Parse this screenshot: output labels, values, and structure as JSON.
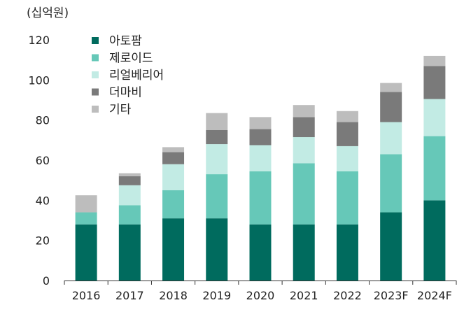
{
  "chart_data": {
    "type": "bar",
    "stacked": true,
    "unit_label": "(십억원)",
    "categories": [
      "2016",
      "2017",
      "2018",
      "2019",
      "2020",
      "2021",
      "2022",
      "2023F",
      "2024F"
    ],
    "series": [
      {
        "name": "아토팜",
        "color": "#006b5e",
        "values": [
          28,
          28,
          31,
          31,
          28,
          28,
          28,
          34,
          40
        ]
      },
      {
        "name": "제로이드",
        "color": "#66c8b8",
        "values": [
          6,
          9.5,
          14,
          22,
          26.5,
          30.5,
          26.5,
          29,
          32
        ]
      },
      {
        "name": "리얼베리어",
        "color": "#c2ebe4",
        "values": [
          0,
          10,
          13,
          15,
          13,
          13,
          12.5,
          16,
          18.5
        ]
      },
      {
        "name": "더마비",
        "color": "#7a7a7a",
        "values": [
          0,
          4.5,
          6,
          7,
          8,
          10,
          12,
          15,
          16.5
        ]
      },
      {
        "name": "기타",
        "color": "#bdbdbd",
        "values": [
          8.5,
          1.5,
          2.5,
          8.5,
          6,
          6,
          5.5,
          4.5,
          5
        ]
      }
    ],
    "ylim": [
      0,
      120
    ],
    "yticks": [
      0,
      20,
      40,
      60,
      80,
      100,
      120
    ],
    "grid": false,
    "legend_position": "top-left"
  }
}
